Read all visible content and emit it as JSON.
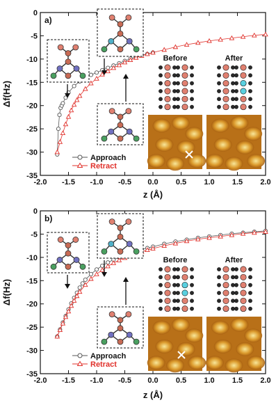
{
  "chart_data": [
    {
      "type": "scatter",
      "panel_label": "a)",
      "xlabel": "z (Å)",
      "ylabel": "Δf(Hz)",
      "xlim": [
        -2.0,
        2.0
      ],
      "ylim": [
        -35,
        0
      ],
      "xticks": [
        "-2.0",
        "-1.5",
        "-1.0",
        "-0.5",
        "0.0",
        "0.5",
        "1.0",
        "1.5",
        "2.0"
      ],
      "yticks": [
        "0",
        "-5",
        "-10",
        "-15",
        "-20",
        "-25",
        "-30",
        "-35"
      ],
      "legend_position": "lower-center",
      "image_labels": [
        "Before",
        "After"
      ],
      "series": [
        {
          "name": "Approach",
          "marker": "circle",
          "color": "#555555",
          "x": [
            -1.7,
            -1.68,
            -1.66,
            -1.64,
            -1.62,
            -1.6,
            -1.55,
            -1.5,
            -1.4,
            -1.3,
            -1.2,
            -1.1,
            -1.0,
            -0.9,
            -0.8,
            -0.7,
            -0.6,
            -0.5,
            -0.4,
            -0.3,
            -0.2,
            -0.1,
            0.0
          ],
          "y": [
            -30.5,
            -25.0,
            -22.0,
            -20.5,
            -20.0,
            -19.5,
            -18.3,
            -17.2,
            -15.8,
            -14.8,
            -14.0,
            -13.4,
            -12.9,
            -12.4,
            -11.9,
            -11.4,
            -10.9,
            -10.4,
            -9.9,
            -9.5,
            -9.2,
            -8.9,
            -8.6
          ]
        },
        {
          "name": "Retract",
          "marker": "triangle",
          "color": "#e0302a",
          "x": [
            -1.7,
            -1.65,
            -1.6,
            -1.55,
            -1.5,
            -1.45,
            -1.4,
            -1.35,
            -1.3,
            -1.2,
            -1.1,
            -1.0,
            -0.9,
            -0.8,
            -0.7,
            -0.6,
            -0.5,
            -0.4,
            -0.3,
            -0.2,
            -0.1,
            0.0,
            0.2,
            0.4,
            0.6,
            0.8,
            1.0,
            1.2,
            1.4,
            1.6,
            1.8,
            2.0
          ],
          "y": [
            -30.0,
            -27.8,
            -25.9,
            -24.0,
            -22.4,
            -21.0,
            -19.8,
            -18.8,
            -17.9,
            -16.4,
            -15.2,
            -14.2,
            -13.3,
            -12.6,
            -11.9,
            -11.3,
            -10.7,
            -10.2,
            -9.7,
            -9.3,
            -8.9,
            -8.6,
            -8.0,
            -7.4,
            -6.9,
            -6.5,
            -6.1,
            -5.8,
            -5.5,
            -5.2,
            -4.9,
            -4.7
          ]
        }
      ]
    },
    {
      "type": "scatter",
      "panel_label": "b)",
      "xlabel": "z (Å)",
      "ylabel": "Δf(Hz)",
      "xlim": [
        -2.0,
        2.0
      ],
      "ylim": [
        -35,
        0
      ],
      "xticks": [
        "-2.0",
        "-1.5",
        "-1.0",
        "-0.5",
        "0.0",
        "0.5",
        "1.0",
        "1.5",
        "2.0"
      ],
      "yticks": [
        "0",
        "-5",
        "-10",
        "-15",
        "-20",
        "-25",
        "-30",
        "-35"
      ],
      "legend_position": "lower-center",
      "image_labels": [
        "Before",
        "After"
      ],
      "series": [
        {
          "name": "Approach",
          "marker": "circle",
          "color": "#555555",
          "x": [
            -1.7,
            -1.65,
            -1.6,
            -1.55,
            -1.5,
            -1.45,
            -1.4,
            -1.35,
            -1.3,
            -1.25,
            -1.2,
            -1.1,
            -1.0,
            -0.9,
            -0.8,
            -0.7,
            -0.6,
            -0.5,
            -0.4,
            -0.3,
            -0.2,
            -0.1,
            0.0,
            0.2,
            0.4,
            0.6,
            0.8,
            1.0,
            1.2,
            1.4,
            1.6,
            1.8,
            2.0
          ],
          "y": [
            -27.0,
            -25.5,
            -24.0,
            -22.6,
            -21.2,
            -19.9,
            -18.7,
            -17.6,
            -16.5,
            -15.6,
            -14.8,
            -13.6,
            -12.6,
            -11.8,
            -11.1,
            -10.5,
            -10.0,
            -9.5,
            -9.1,
            -8.7,
            -8.3,
            -8.0,
            -7.7,
            -7.1,
            -6.6,
            -6.2,
            -5.8,
            -5.5,
            -5.2,
            -4.9,
            -4.7,
            -4.5,
            -4.3
          ]
        },
        {
          "name": "Retract",
          "marker": "triangle",
          "color": "#e0302a",
          "x": [
            -1.7,
            -1.65,
            -1.6,
            -1.55,
            -1.5,
            -1.45,
            -1.4,
            -1.35,
            -1.3,
            -1.2,
            -1.1,
            -1.0,
            -0.9,
            -0.8,
            -0.7,
            -0.6,
            -0.5,
            -0.4,
            -0.3,
            -0.2,
            -0.1,
            0.0,
            0.2,
            0.4,
            0.6,
            0.8,
            1.0,
            1.2,
            1.4,
            1.6,
            1.8,
            2.0
          ],
          "y": [
            -27.0,
            -25.6,
            -24.2,
            -22.8,
            -21.6,
            -20.4,
            -19.3,
            -18.3,
            -17.4,
            -15.9,
            -14.6,
            -13.6,
            -12.7,
            -11.9,
            -11.2,
            -10.6,
            -10.1,
            -9.6,
            -9.2,
            -8.8,
            -8.4,
            -8.1,
            -7.5,
            -7.0,
            -6.5,
            -6.1,
            -5.8,
            -5.5,
            -5.2,
            -4.9,
            -4.7,
            -4.5
          ]
        }
      ]
    }
  ]
}
